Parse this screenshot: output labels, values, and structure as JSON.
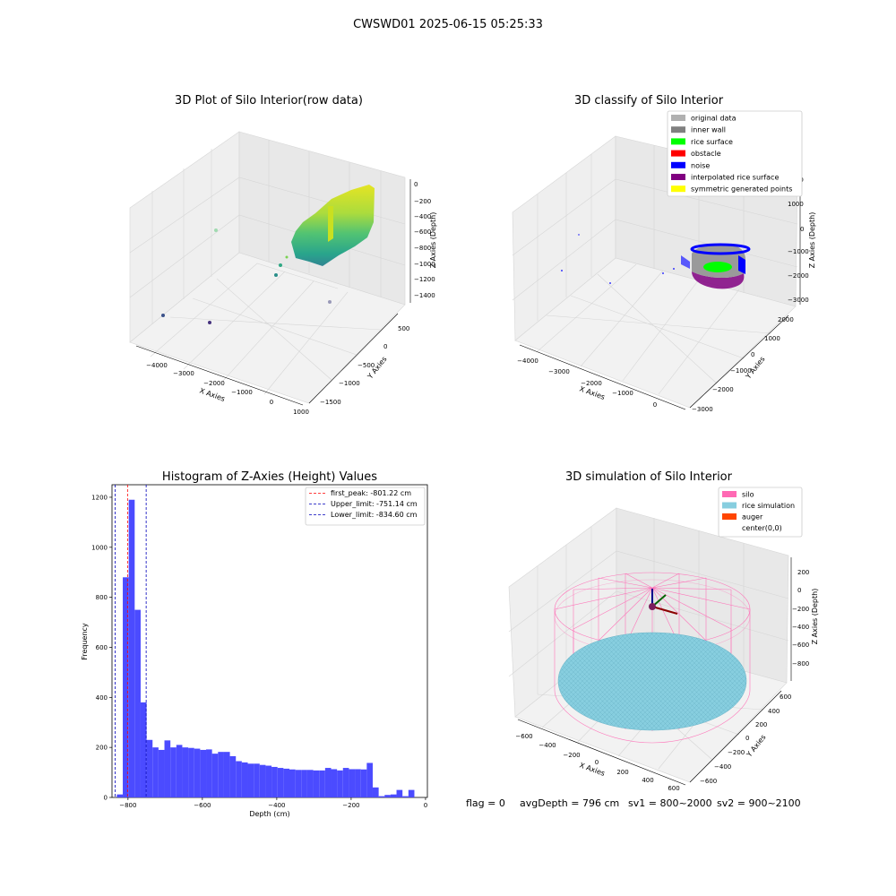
{
  "suptitle": "CWSWD01 2025-06-15 05:25:33",
  "footer": {
    "flag": "flag = 0",
    "avg_depth": "avgDepth = 796 cm",
    "sv1": "sv1 = 800~2000",
    "sv2": "sv2 = 900~2100"
  },
  "colors": {
    "hist_bar": "#4b4bff",
    "first_peak_line": "#ff0000",
    "limit_line": "#0000bb",
    "silo": "#ff69b4",
    "rice_simulation": "#87cedf",
    "auger": "#ff4500",
    "original_data": "#b0b0b0",
    "inner_wall": "#808080",
    "rice_surface": "#00ff00",
    "obstacle": "#ff0000",
    "noise": "#0000ff",
    "interpolated_rice_surface": "#800080",
    "symmetric_generated_points": "#ffff00"
  },
  "chart_data": [
    {
      "type": "scatter3d",
      "title": "3D Plot of Silo Interior(row data)",
      "xlabel": "X Axies",
      "ylabel": "Y Axies",
      "zlabel": "Z Axies (Depth)",
      "xticks": [
        "−4000",
        "−3000",
        "−2000",
        "−1000",
        "0",
        "1000"
      ],
      "yticks": [
        "500",
        "0",
        "−500",
        "−1000",
        "−1500"
      ],
      "zticks": [
        "0",
        "−200",
        "−400",
        "−600",
        "−800",
        "−1000",
        "−1200",
        "−1400"
      ],
      "colormap": "viridis"
    },
    {
      "type": "scatter3d",
      "title": "3D classify of Silo Interior",
      "xlabel": "X Axies",
      "ylabel": "Y Axies",
      "zlabel": "Z Axies (Depth)",
      "xticks": [
        "−4000",
        "−3000",
        "−2000",
        "−1000",
        "0"
      ],
      "yticks": [
        "2000",
        "1000",
        "0",
        "−1000",
        "−2000",
        "−3000"
      ],
      "zticks": [
        "2000",
        "1000",
        "0",
        "−1000",
        "−2000",
        "−3000"
      ],
      "legend_position": "top-right",
      "legend": [
        {
          "label": "original data",
          "color": "#b0b0b0"
        },
        {
          "label": "inner wall",
          "color": "#808080"
        },
        {
          "label": "rice surface",
          "color": "#00ff00"
        },
        {
          "label": "obstacle",
          "color": "#ff0000"
        },
        {
          "label": "noise",
          "color": "#0000ff"
        },
        {
          "label": "interpolated rice surface",
          "color": "#800080"
        },
        {
          "label": "symmetric generated points",
          "color": "#ffff00"
        }
      ]
    },
    {
      "type": "bar",
      "title": "Histogram of Z-Axies (Height) Values",
      "xlabel": "Depth (cm)",
      "ylabel": "Frequency",
      "xlim": [
        -843,
        5
      ],
      "ylim": [
        0,
        1250
      ],
      "xticks": [
        -800,
        -600,
        -400,
        -200,
        0
      ],
      "xtick_labels": [
        "−800",
        "−600",
        "−400",
        "−200",
        "0"
      ],
      "yticks": [
        0,
        200,
        400,
        600,
        800,
        1000,
        1200
      ],
      "bin_width": 16,
      "bin_start": -830,
      "values": [
        12,
        880,
        1190,
        750,
        380,
        230,
        200,
        190,
        228,
        200,
        210,
        200,
        198,
        195,
        190,
        192,
        175,
        182,
        182,
        165,
        145,
        140,
        135,
        135,
        130,
        127,
        122,
        118,
        115,
        112,
        110,
        110,
        110,
        108,
        108,
        118,
        113,
        108,
        118,
        113,
        113,
        112,
        138,
        40,
        5,
        10,
        12,
        30,
        5,
        30
      ],
      "vlines": [
        {
          "label": "first_peak: -801.22 cm",
          "x": -801.22,
          "style": "red"
        },
        {
          "label": "Upper_limit: -751.14 cm",
          "x": -751.14,
          "style": "blue"
        },
        {
          "label": "Lower_limit: -834.60 cm",
          "x": -834.6,
          "style": "blue"
        }
      ],
      "legend_position": "top-right"
    },
    {
      "type": "surface3d",
      "title": "3D simulation of Silo Interior",
      "xlabel": "X Axies",
      "ylabel": "Y Axies",
      "zlabel": "Z Axies (Depth)",
      "xticks": [
        "−600",
        "−400",
        "−200",
        "0",
        "200",
        "400",
        "600"
      ],
      "yticks": [
        "600",
        "400",
        "200",
        "0",
        "−200",
        "−400",
        "−600"
      ],
      "zticks": [
        "200",
        "0",
        "−200",
        "−400",
        "−600",
        "−800"
      ],
      "legend_position": "top-right",
      "legend": [
        {
          "label": "silo",
          "color": "#ff69b4"
        },
        {
          "label": "rice simulation",
          "color": "#87cedf"
        },
        {
          "label": "auger",
          "color": "#ff4500"
        },
        {
          "label": "center(0,0)",
          "color": ""
        }
      ]
    }
  ]
}
